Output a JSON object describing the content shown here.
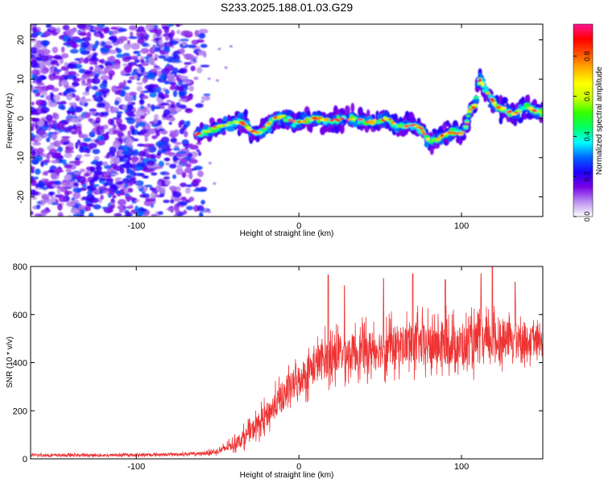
{
  "title": "S233.2025.188.01.03.G29",
  "chart_data": [
    {
      "type": "heatmap",
      "xlabel": "Height of straight line (km)",
      "ylabel": "Frequency (Hz)",
      "xlim": [
        -165,
        150
      ],
      "ylim": [
        -25,
        24
      ],
      "xticks": [
        -100,
        0,
        100
      ],
      "yticks": [
        -20,
        -10,
        0,
        10,
        20
      ],
      "colorbar": {
        "label": "Normalized spectral amplitude",
        "range": [
          0,
          0.96
        ],
        "ticks": [
          0.0,
          0.2,
          0.4,
          0.6,
          0.8
        ],
        "tick_labels": [
          "0.0",
          "0.2",
          "0.4",
          "0.6",
          "0.8"
        ],
        "colors": [
          "#ffffff",
          "#b98ff0",
          "#7a00e6",
          "#1e00ff",
          "#0066ff",
          "#00ffff",
          "#00ff66",
          "#33ff00",
          "#ccff00",
          "#ffff00",
          "#ffb000",
          "#ff5000",
          "#ff0000",
          "#ff1493"
        ]
      },
      "ridge": {
        "description_points": [
          [
            -62,
            -4
          ],
          [
            -55,
            -3
          ],
          [
            -48,
            -2
          ],
          [
            -40,
            -1
          ],
          [
            -35,
            -1
          ],
          [
            -30,
            -3
          ],
          [
            -25,
            -4
          ],
          [
            -20,
            -2
          ],
          [
            -15,
            0
          ],
          [
            -10,
            0.5
          ],
          [
            -5,
            -0.5
          ],
          [
            0,
            -1
          ],
          [
            10,
            0
          ],
          [
            20,
            -0.5
          ],
          [
            30,
            0
          ],
          [
            40,
            -0.5
          ],
          [
            45,
            -1
          ],
          [
            50,
            -0.5
          ],
          [
            55,
            0
          ],
          [
            60,
            -2
          ],
          [
            65,
            -2
          ],
          [
            70,
            -1.5
          ],
          [
            75,
            -2.5
          ],
          [
            80,
            -6
          ],
          [
            85,
            -5.5
          ],
          [
            90,
            -4
          ],
          [
            95,
            -3.5
          ],
          [
            100,
            -4
          ],
          [
            103,
            -2
          ],
          [
            105,
            2
          ],
          [
            108,
            3
          ],
          [
            111,
            10
          ],
          [
            114,
            8
          ],
          [
            118,
            5
          ],
          [
            122,
            3
          ],
          [
            128,
            2
          ],
          [
            132,
            1
          ],
          [
            136,
            2
          ],
          [
            140,
            3
          ],
          [
            145,
            2
          ],
          [
            150,
            1.5
          ]
        ]
      }
    },
    {
      "type": "line",
      "xlabel": "Height of straight line (km)",
      "ylabel": "SNR (10 * v/v)",
      "xlim": [
        -165,
        150
      ],
      "ylim": [
        0,
        800
      ],
      "xticks": [
        -100,
        0,
        100
      ],
      "yticks": [
        0,
        200,
        400,
        600,
        800
      ],
      "color": "#ee3333",
      "envelope": {
        "x": [
          -165,
          -120,
          -80,
          -60,
          -50,
          -40,
          -30,
          -20,
          -10,
          0,
          10,
          20,
          30,
          40,
          50,
          60,
          70,
          80,
          90,
          100,
          110,
          120,
          130,
          140,
          150
        ],
        "mean": [
          15,
          15,
          18,
          22,
          30,
          60,
          110,
          180,
          260,
          330,
          390,
          430,
          440,
          450,
          460,
          470,
          480,
          470,
          480,
          470,
          480,
          490,
          500,
          490,
          480
        ],
        "spread": [
          10,
          10,
          10,
          12,
          18,
          40,
          70,
          90,
          110,
          120,
          140,
          150,
          140,
          140,
          150,
          150,
          160,
          160,
          160,
          150,
          160,
          150,
          130,
          110,
          100
        ],
        "peaks": [
          [
            18,
            765
          ],
          [
            28,
            720
          ],
          [
            52,
            750
          ],
          [
            70,
            770
          ],
          [
            90,
            745
          ],
          [
            112,
            770
          ],
          [
            119,
            800
          ],
          [
            133,
            735
          ]
        ]
      }
    }
  ]
}
